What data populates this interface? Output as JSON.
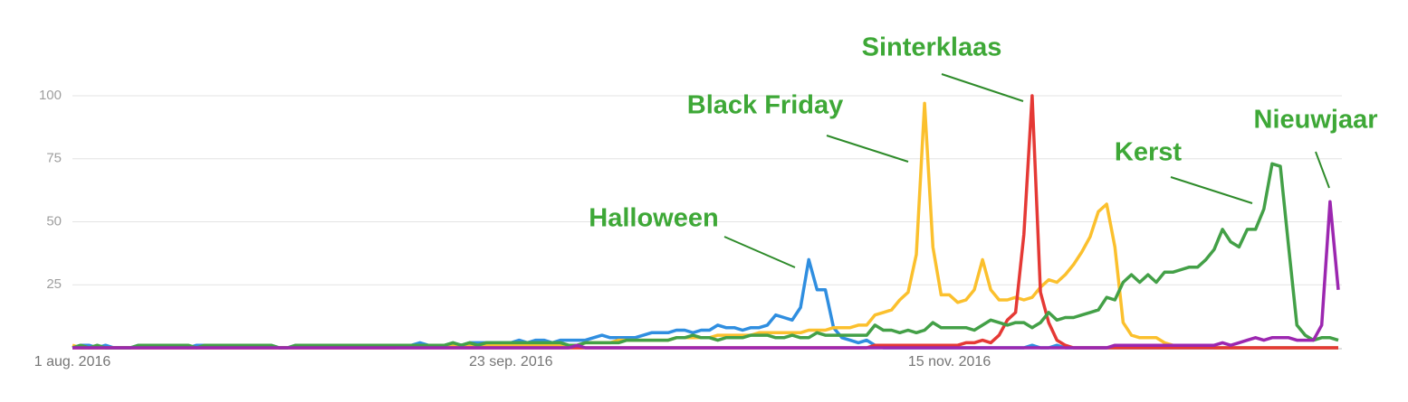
{
  "chart_data": {
    "type": "line",
    "categories": [
      "1 aug. 2016",
      null,
      null,
      null,
      null,
      null,
      null,
      null,
      null,
      null,
      null,
      null,
      null,
      null,
      null,
      null,
      null,
      null,
      null,
      null,
      null,
      null,
      null,
      null,
      null,
      null,
      null,
      null,
      null,
      null,
      null,
      null,
      null,
      null,
      null,
      null,
      null,
      null,
      null,
      null,
      null,
      null,
      null,
      null,
      null,
      null,
      null,
      null,
      null,
      null,
      null,
      null,
      null,
      "23 sep. 2016",
      null,
      null,
      null,
      null,
      null,
      null,
      null,
      null,
      null,
      null,
      null,
      null,
      null,
      null,
      null,
      null,
      null,
      null,
      null,
      null,
      null,
      null,
      null,
      null,
      null,
      null,
      null,
      null,
      null,
      null,
      null,
      null,
      null,
      null,
      null,
      null,
      null,
      null,
      null,
      null,
      null,
      null,
      null,
      null,
      null,
      null,
      null,
      null,
      null,
      null,
      null,
      null,
      "15 nov. 2016",
      null,
      null,
      null,
      null,
      null,
      null,
      null,
      null,
      null,
      null,
      null,
      null,
      null,
      null,
      null,
      null,
      null,
      null,
      null,
      null,
      null,
      null,
      null,
      null,
      null,
      null,
      null,
      null,
      null,
      null,
      null,
      null,
      null,
      null,
      null,
      null,
      null,
      null,
      null,
      null,
      null,
      null,
      null,
      null,
      null,
      null,
      null
    ],
    "series": [
      {
        "name": "Halloween",
        "color": "#2f8ee0",
        "values": [
          0,
          1,
          1,
          0,
          1,
          0,
          0,
          0,
          1,
          1,
          1,
          1,
          1,
          1,
          0,
          1,
          1,
          1,
          0,
          1,
          1,
          1,
          1,
          1,
          1,
          0,
          0,
          1,
          1,
          1,
          1,
          1,
          1,
          1,
          1,
          1,
          1,
          1,
          1,
          1,
          1,
          1,
          2,
          1,
          1,
          1,
          2,
          1,
          2,
          2,
          2,
          2,
          2,
          2,
          3,
          2,
          3,
          3,
          2,
          3,
          3,
          3,
          3,
          4,
          5,
          4,
          4,
          4,
          4,
          5,
          6,
          6,
          6,
          7,
          7,
          6,
          7,
          7,
          9,
          8,
          8,
          7,
          8,
          8,
          9,
          13,
          12,
          11,
          16,
          35,
          23,
          23,
          8,
          4,
          3,
          2,
          3,
          1,
          0,
          0,
          0,
          0,
          0,
          0,
          0,
          0,
          0,
          0,
          0,
          0,
          0,
          0,
          0,
          0,
          0,
          0,
          1,
          0,
          0,
          1,
          0,
          0,
          0,
          0,
          0,
          0,
          0,
          0,
          0,
          0,
          0,
          0,
          0,
          0,
          0,
          0,
          0,
          0,
          0,
          0,
          0,
          0,
          0,
          0,
          0,
          0,
          0,
          0,
          0,
          0,
          0,
          0,
          0,
          0
        ]
      },
      {
        "name": "Black Friday",
        "color": "#fbc02d",
        "values": [
          1,
          0,
          0,
          0,
          0,
          0,
          0,
          0,
          0,
          0,
          0,
          0,
          0,
          0,
          0,
          0,
          0,
          0,
          0,
          0,
          0,
          0,
          0,
          0,
          0,
          0,
          0,
          0,
          0,
          0,
          0,
          0,
          0,
          0,
          0,
          0,
          0,
          0,
          0,
          0,
          1,
          1,
          1,
          1,
          1,
          1,
          1,
          1,
          1,
          1,
          1,
          1,
          1,
          1,
          1,
          1,
          1,
          1,
          1,
          1,
          1,
          1,
          2,
          2,
          2,
          2,
          3,
          3,
          3,
          3,
          3,
          3,
          3,
          4,
          4,
          4,
          4,
          4,
          5,
          5,
          5,
          5,
          5,
          6,
          6,
          6,
          6,
          6,
          6,
          7,
          7,
          7,
          8,
          8,
          8,
          9,
          9,
          13,
          14,
          15,
          19,
          22,
          37,
          97,
          40,
          21,
          21,
          18,
          19,
          23,
          35,
          23,
          19,
          19,
          20,
          19,
          20,
          24,
          27,
          26,
          29,
          33,
          38,
          44,
          54,
          57,
          40,
          10,
          5,
          4,
          4,
          4,
          2,
          1,
          1,
          1,
          1,
          1,
          0,
          0,
          0,
          0,
          0,
          0,
          0,
          0,
          0,
          0,
          0,
          0,
          0,
          0,
          0,
          0
        ]
      },
      {
        "name": "Sinterklaas",
        "color": "#e53935",
        "values": [
          0,
          0,
          0,
          0,
          0,
          0,
          0,
          0,
          0,
          0,
          0,
          0,
          0,
          0,
          0,
          0,
          0,
          0,
          0,
          0,
          0,
          0,
          0,
          0,
          0,
          0,
          0,
          0,
          0,
          0,
          0,
          0,
          0,
          0,
          0,
          0,
          0,
          0,
          0,
          0,
          0,
          0,
          0,
          0,
          0,
          0,
          0,
          0,
          0,
          0,
          0,
          0,
          0,
          0,
          0,
          0,
          0,
          0,
          0,
          0,
          0,
          0,
          0,
          0,
          0,
          0,
          0,
          0,
          0,
          0,
          0,
          0,
          0,
          0,
          0,
          0,
          0,
          0,
          0,
          0,
          0,
          0,
          0,
          0,
          0,
          0,
          0,
          0,
          0,
          0,
          0,
          0,
          0,
          0,
          0,
          0,
          0,
          1,
          1,
          1,
          1,
          1,
          1,
          1,
          1,
          1,
          1,
          1,
          2,
          2,
          3,
          2,
          5,
          11,
          14,
          45,
          100,
          22,
          10,
          3,
          1,
          0,
          0,
          0,
          0,
          0,
          0,
          0,
          0,
          0,
          0,
          0,
          0,
          0,
          0,
          0,
          0,
          0,
          0,
          0,
          0,
          0,
          0,
          0,
          0,
          0,
          0,
          0,
          0,
          0,
          0,
          0,
          0,
          0
        ]
      },
      {
        "name": "Kerst",
        "color": "#43a047",
        "values": [
          0,
          1,
          0,
          1,
          0,
          0,
          0,
          0,
          1,
          1,
          1,
          1,
          1,
          1,
          1,
          0,
          1,
          1,
          1,
          1,
          1,
          1,
          1,
          1,
          1,
          0,
          0,
          1,
          1,
          1,
          1,
          1,
          1,
          1,
          1,
          1,
          1,
          1,
          1,
          1,
          1,
          1,
          1,
          1,
          1,
          1,
          2,
          1,
          2,
          1,
          2,
          2,
          2,
          2,
          2,
          2,
          2,
          2,
          2,
          2,
          1,
          1,
          2,
          2,
          2,
          2,
          2,
          3,
          3,
          3,
          3,
          3,
          3,
          4,
          4,
          5,
          4,
          4,
          3,
          4,
          4,
          4,
          5,
          5,
          5,
          4,
          4,
          5,
          4,
          4,
          6,
          5,
          5,
          5,
          5,
          5,
          5,
          9,
          7,
          7,
          6,
          7,
          6,
          7,
          10,
          8,
          8,
          8,
          8,
          7,
          9,
          11,
          10,
          9,
          10,
          10,
          8,
          10,
          14,
          11,
          12,
          12,
          13,
          14,
          15,
          20,
          19,
          26,
          29,
          26,
          29,
          26,
          30,
          30,
          31,
          32,
          32,
          35,
          39,
          47,
          42,
          40,
          47,
          47,
          55,
          73,
          72,
          40,
          9,
          5,
          3,
          4,
          4,
          3
        ]
      },
      {
        "name": "Nieuwjaar",
        "color": "#9c27b0",
        "values": [
          0,
          0,
          0,
          0,
          0,
          0,
          0,
          0,
          0,
          0,
          0,
          0,
          0,
          0,
          0,
          0,
          0,
          0,
          0,
          0,
          0,
          0,
          0,
          0,
          0,
          0,
          0,
          0,
          0,
          0,
          0,
          0,
          0,
          0,
          0,
          0,
          0,
          0,
          0,
          0,
          0,
          0,
          0,
          0,
          0,
          0,
          0,
          0,
          0,
          0,
          0,
          0,
          0,
          0,
          0,
          0,
          0,
          0,
          0,
          0,
          0,
          1,
          0,
          0,
          0,
          0,
          0,
          0,
          0,
          0,
          0,
          0,
          0,
          0,
          0,
          0,
          0,
          0,
          0,
          0,
          0,
          0,
          0,
          0,
          0,
          0,
          0,
          0,
          0,
          0,
          0,
          0,
          0,
          0,
          0,
          0,
          0,
          0,
          0,
          0,
          0,
          0,
          0,
          0,
          0,
          0,
          0,
          0,
          0,
          0,
          0,
          0,
          0,
          0,
          0,
          0,
          0,
          0,
          0,
          0,
          0,
          0,
          0,
          0,
          0,
          0,
          1,
          1,
          1,
          1,
          1,
          1,
          1,
          1,
          1,
          1,
          1,
          1,
          1,
          2,
          1,
          2,
          3,
          4,
          3,
          4,
          4,
          4,
          3,
          3,
          3,
          9,
          58,
          23
        ]
      }
    ],
    "ylim": [
      0,
      100
    ],
    "yticks": [
      25,
      50,
      75,
      100
    ],
    "grid": true
  }
}
